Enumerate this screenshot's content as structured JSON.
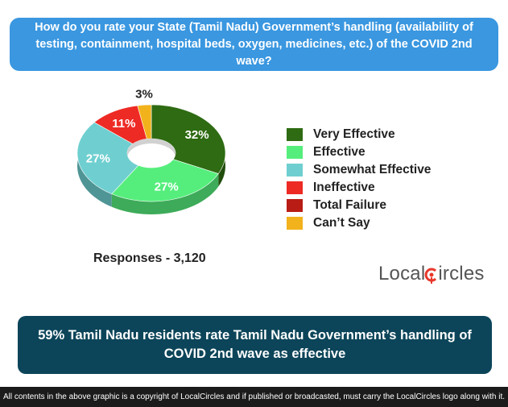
{
  "question": "How do you rate your State (Tamil Nadu) Government’s handling (availability of testing, containment, hospital beds, oxygen, medicines, etc.) of the COVID 2nd wave?",
  "chart_data": {
    "type": "pie",
    "title": "",
    "categories": [
      "Very Effective",
      "Effective",
      "Somewhat Effective",
      "Ineffective",
      "Total Failure",
      "Can’t Say"
    ],
    "values": [
      32,
      27,
      27,
      11,
      0,
      3
    ],
    "labels": [
      "32%",
      "27%",
      "27%",
      "11%",
      "",
      "3%"
    ],
    "colors": [
      "#2e6b12",
      "#55ee7c",
      "#6fcfd0",
      "#ee2a24",
      "#b91c14",
      "#f2b21c"
    ],
    "label_colors": [
      "#ffffff",
      "#ffffff",
      "#ffffff",
      "#ffffff",
      "#ffffff",
      "#222222"
    ],
    "legend_position": "right",
    "donut": true,
    "style": "3d"
  },
  "responses": "Responses - 3,120",
  "logo": {
    "left": "Local",
    "right": "ircles"
  },
  "summary": "59% Tamil Nadu residents rate Tamil Nadu Government’s handling of COVID 2nd wave as effective",
  "footer": "All contents in the above graphic is a copyright of LocalCircles and if published or broadcasted, must carry the LocalCircles logo along with it."
}
